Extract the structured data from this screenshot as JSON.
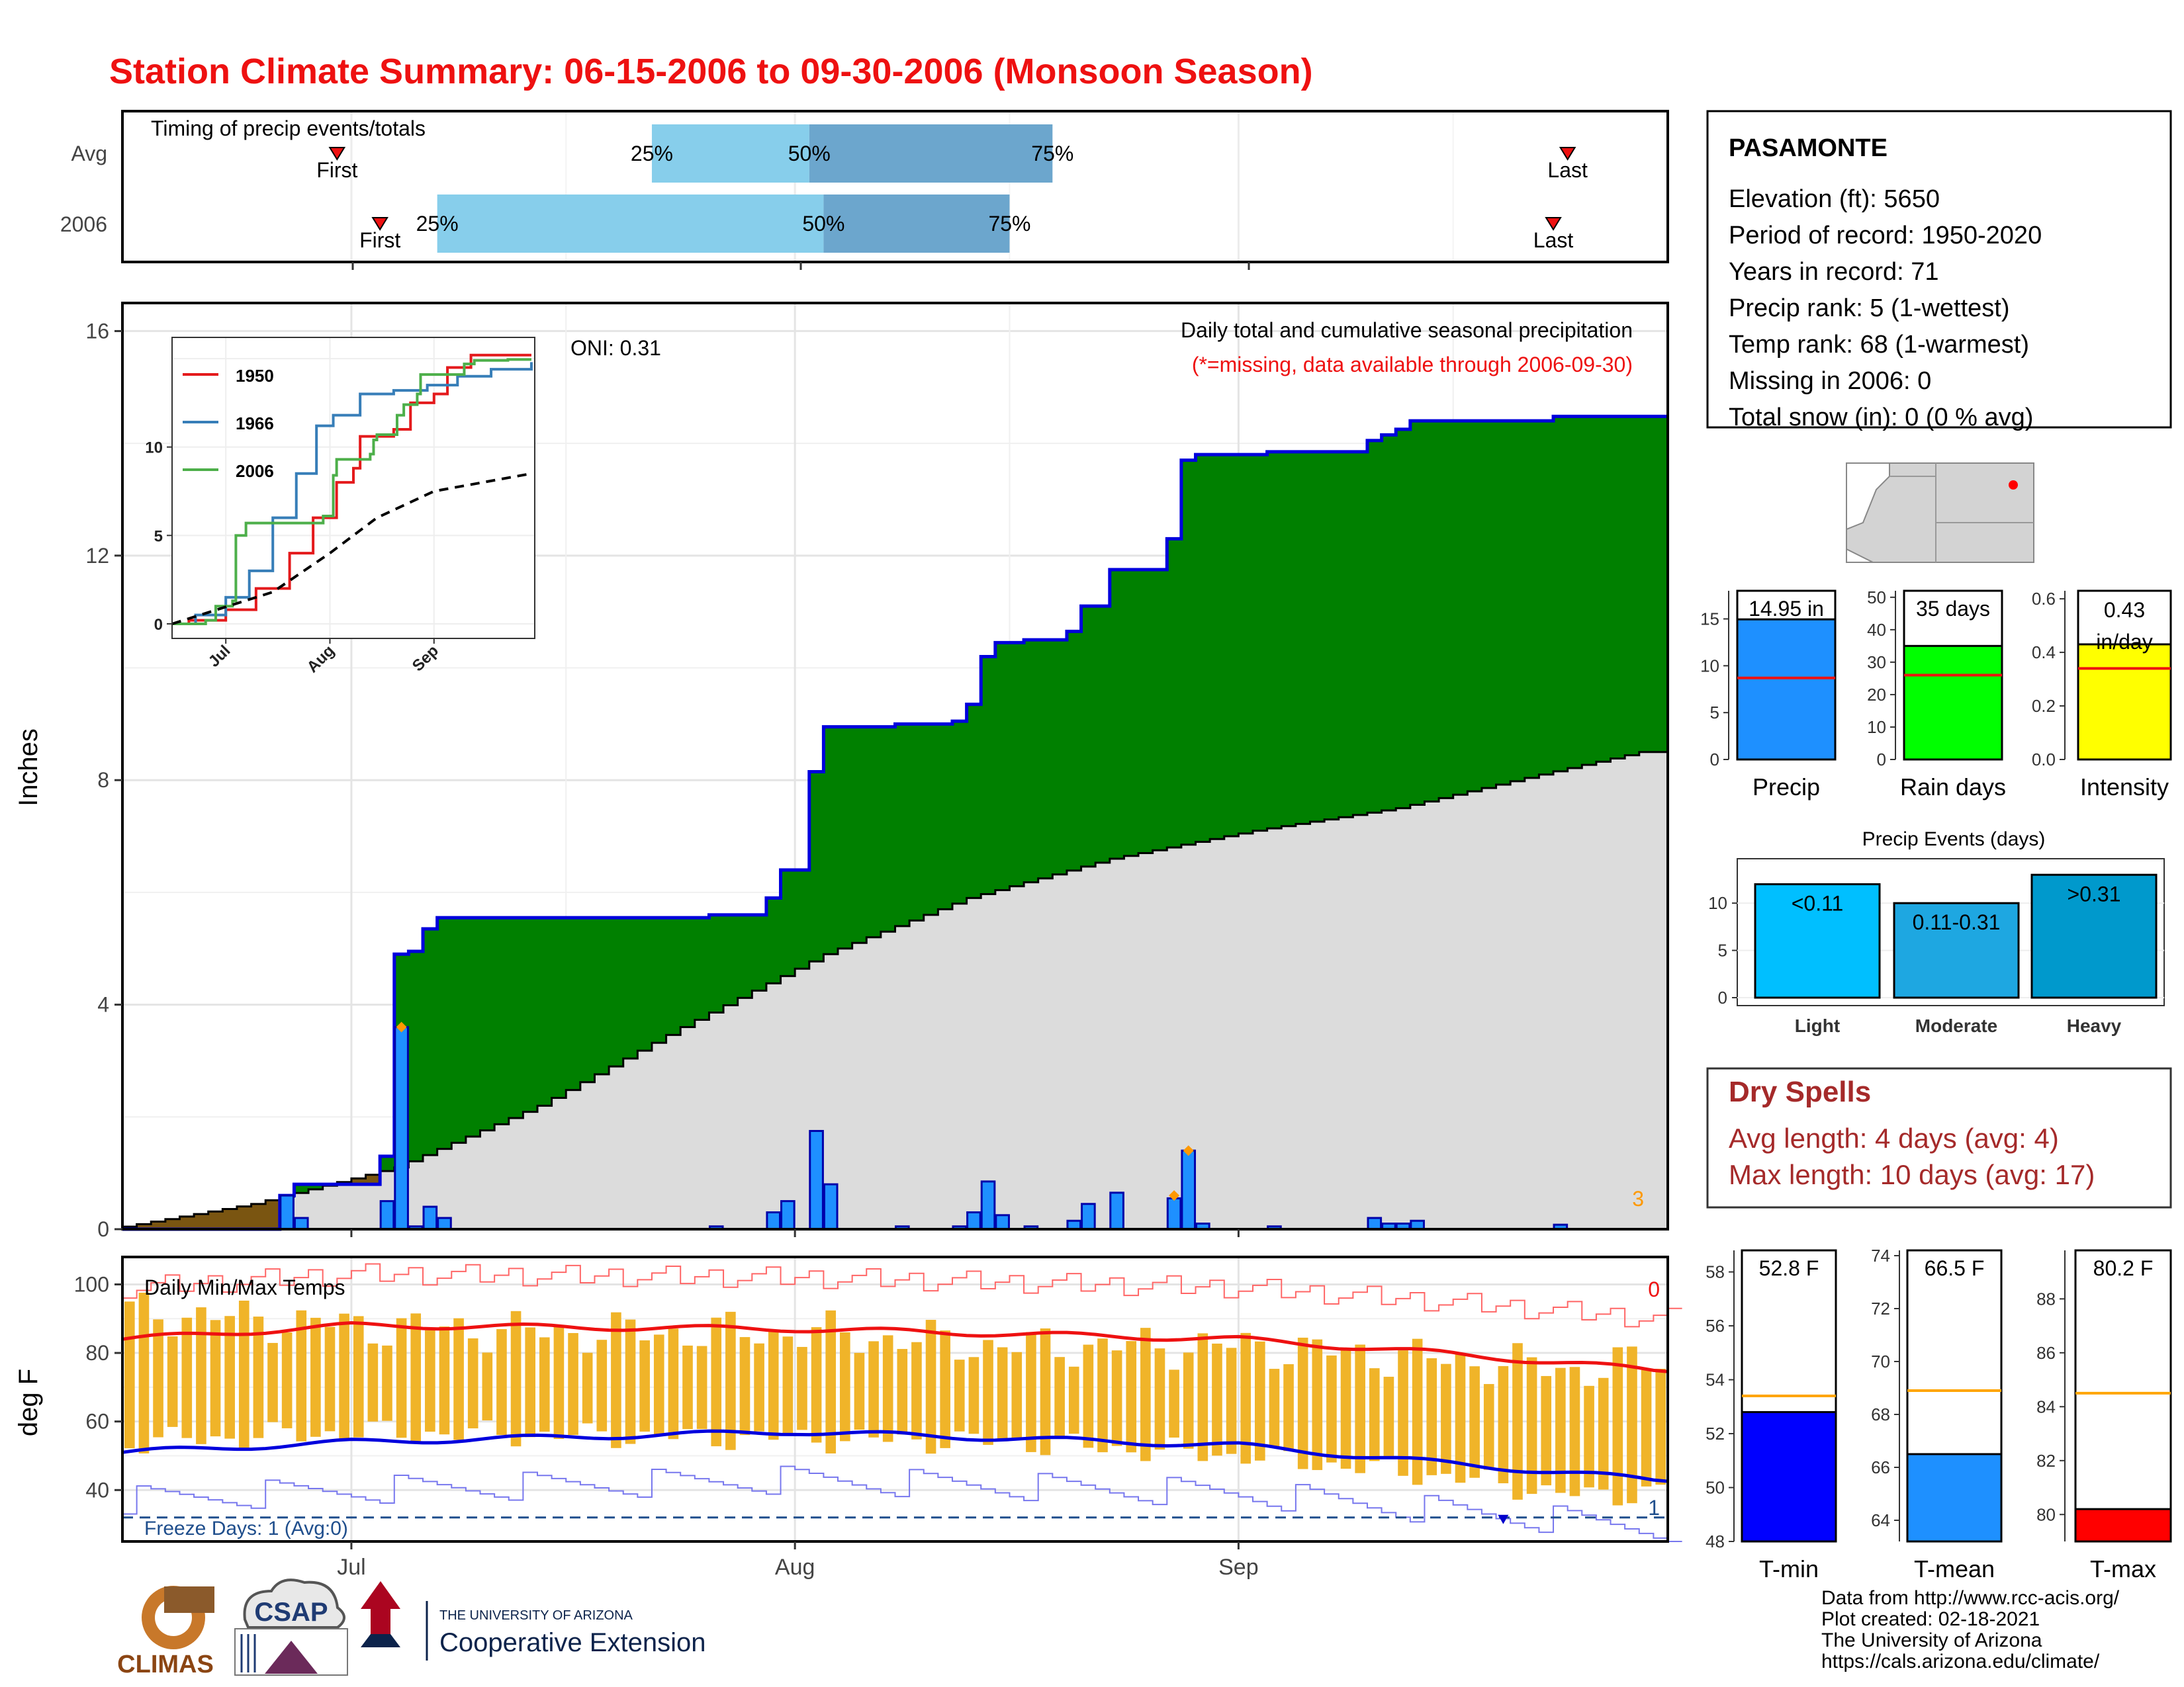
{
  "title": "Station Climate Summary: 06-15-2006 to 09-30-2006 (Monsoon Season)",
  "colors": {
    "title": "#ee1111",
    "cum_2006_fill": "#008000",
    "cum_2006_line": "#0000dd",
    "avg_fill": "#dcdcdc",
    "deficit_fill": "#7a5511",
    "daily_bar": "#1e90ff",
    "max_line": "#ee1111",
    "min_line": "#0000dd",
    "temp_bar": "#f0b429",
    "light_blue": "#87ceeb",
    "mid_blue": "#6ca6cd",
    "dry_spells": "#a52a2a"
  },
  "timing": {
    "label": "Timing of precip events/totals",
    "rows": [
      {
        "name": "Avg",
        "first_label": "First",
        "last_label": "Last",
        "p25_label": "25%",
        "p50_label": "50%",
        "p75_label": "75%",
        "first": "2006-06-30",
        "p25": "2006-07-22",
        "p50": "2006-08-02",
        "p75": "2006-08-19",
        "last": "2006-09-24"
      },
      {
        "name": "2006",
        "first_label": "First",
        "last_label": "Last",
        "p25_label": "25%",
        "p50_label": "50%",
        "p75_label": "75%",
        "first": "2006-07-03",
        "p25": "2006-07-07",
        "p50": "2006-08-03",
        "p75": "2006-08-16",
        "last": "2006-09-23"
      }
    ]
  },
  "station": {
    "name": "PASAMONTE",
    "lines": [
      "Elevation (ft): 5650",
      "Period of record: 1950-2020",
      "Years in record: 71",
      "Precip rank: 5 (1-wettest)",
      "Temp rank: 68 (1-warmest)",
      "Missing in 2006: 0",
      "Total snow (in): 0 (0 % avg)"
    ]
  },
  "main_plot": {
    "ylabel": "Inches",
    "oni_label": "ONI: 0.31",
    "legend_line1": "Daily total and cumulative seasonal precipitation",
    "legend_line2": "(*=missing, data available through 2006-09-30)",
    "corner_count": "3",
    "x_ticks": [
      "Jul",
      "Aug",
      "Sep"
    ],
    "y_ticks": [
      "0",
      "4",
      "8",
      "12",
      "16"
    ]
  },
  "inset": {
    "series_labels": [
      "1950",
      "1966",
      "2006"
    ],
    "y_ticks": [
      "0",
      "5",
      "10"
    ],
    "x_ticks": [
      "Jul",
      "Aug",
      "Sep"
    ]
  },
  "temp_plot": {
    "ylabel": "deg F",
    "label": "Daily Min/Max Temps",
    "freeze_label": "Freeze Days: 1 (Avg:0)",
    "hot_count": "0",
    "freeze_count": "1",
    "y_ticks": [
      "40",
      "60",
      "80",
      "100"
    ],
    "x_ticks": [
      "Jul",
      "Aug",
      "Sep"
    ]
  },
  "stat_bars": [
    {
      "name": "Precip",
      "value_label": "14.95 in",
      "value": 14.95,
      "avg": 8.7,
      "ylim": [
        0,
        18
      ],
      "ticks": [
        "0",
        "5",
        "10",
        "15"
      ],
      "color": "#1e90ff"
    },
    {
      "name": "Rain days",
      "value_label": "35 days",
      "value": 35,
      "avg": 26,
      "ylim": [
        0,
        52
      ],
      "ticks": [
        "0",
        "10",
        "20",
        "30",
        "40",
        "50"
      ],
      "color": "#00ff00"
    },
    {
      "name": "Intensity",
      "value_label": "0.43 in/day",
      "value": 0.43,
      "avg": 0.34,
      "ylim": [
        0,
        0.63
      ],
      "ticks": [
        "0.0",
        "0.2",
        "0.4",
        "0.6"
      ],
      "color": "#ffff00"
    }
  ],
  "precip_events": {
    "title": "Precip Events (days)",
    "categories": [
      "Light",
      "Moderate",
      "Heavy"
    ],
    "value_labels": [
      "<0.11",
      "0.11-0.31",
      ">0.31"
    ],
    "values": [
      12,
      10,
      13
    ],
    "ticks": [
      "0",
      "5",
      "10"
    ],
    "colors": [
      "#00bfff",
      "#1ea7e1",
      "#0099cc"
    ]
  },
  "dry_spells": {
    "title": "Dry Spells",
    "avg_line": "Avg length: 4 days (avg: 4)",
    "max_line": "Max length: 10 days (avg: 17)"
  },
  "temp_bars": [
    {
      "name": "T-min",
      "value_label": "52.8 F",
      "value": 52.8,
      "avg": 53.4,
      "ylim": [
        48,
        58.8
      ],
      "ticks": [
        "48",
        "50",
        "52",
        "54",
        "56",
        "58"
      ],
      "color": "#0000ff"
    },
    {
      "name": "T-mean",
      "value_label": "66.5 F",
      "value": 66.5,
      "avg": 68.9,
      "ylim": [
        63.2,
        74.2
      ],
      "ticks": [
        "64",
        "66",
        "68",
        "70",
        "72",
        "74"
      ],
      "color": "#1e90ff"
    },
    {
      "name": "T-max",
      "value_label": "80.2 F",
      "value": 80.2,
      "avg": 84.5,
      "ylim": [
        79,
        89.8
      ],
      "ticks": [
        "80",
        "82",
        "84",
        "86",
        "88"
      ],
      "color": "#ff0000"
    }
  ],
  "footer": {
    "lines": [
      "Data from http://www.rcc-acis.org/",
      "Plot created: 02-18-2021",
      "The University of Arizona",
      "https://cals.arizona.edu/climate/"
    ],
    "logo_climas": "CLIMAS",
    "logo_csap": "CSAP",
    "logo_ua_top": "THE UNIVERSITY OF ARIZONA",
    "logo_ua_bottom": "Cooperative Extension"
  },
  "chart_data": [
    {
      "type": "bar",
      "title": "Timing of precip events/totals",
      "categories": [
        "Avg",
        "2006"
      ],
      "x_range": [
        "2006-06-15",
        "2006-09-30"
      ],
      "series": [
        {
          "name": "Avg",
          "values": {
            "first": "2006-06-30",
            "p25": "2006-07-22",
            "p50": "2006-08-02",
            "p75": "2006-08-19",
            "last": "2006-09-24"
          }
        },
        {
          "name": "2006",
          "values": {
            "first": "2006-07-03",
            "p25": "2006-07-07",
            "p50": "2006-08-03",
            "p75": "2006-08-16",
            "last": "2006-09-23"
          }
        }
      ]
    },
    {
      "type": "area",
      "title": "Daily total and cumulative seasonal precipitation",
      "xlabel": "",
      "ylabel": "Inches",
      "x_range": [
        "2006-06-15",
        "2006-09-30"
      ],
      "ylim": [
        0,
        16.5
      ],
      "grid": true,
      "daily_precip_2006": [
        {
          "date": "2006-06-26",
          "value": 0.6
        },
        {
          "date": "2006-06-27",
          "value": 0.2
        },
        {
          "date": "2006-07-03",
          "value": 0.5
        },
        {
          "date": "2006-07-04",
          "value": 3.6
        },
        {
          "date": "2006-07-05",
          "value": 0.05
        },
        {
          "date": "2006-07-06",
          "value": 0.4
        },
        {
          "date": "2006-07-07",
          "value": 0.2
        },
        {
          "date": "2006-07-26",
          "value": 0.05
        },
        {
          "date": "2006-07-30",
          "value": 0.3
        },
        {
          "date": "2006-07-31",
          "value": 0.5
        },
        {
          "date": "2006-08-02",
          "value": 1.75
        },
        {
          "date": "2006-08-03",
          "value": 0.8
        },
        {
          "date": "2006-08-08",
          "value": 0.05
        },
        {
          "date": "2006-08-12",
          "value": 0.05
        },
        {
          "date": "2006-08-13",
          "value": 0.3
        },
        {
          "date": "2006-08-14",
          "value": 0.85
        },
        {
          "date": "2006-08-15",
          "value": 0.25
        },
        {
          "date": "2006-08-17",
          "value": 0.05
        },
        {
          "date": "2006-08-20",
          "value": 0.15
        },
        {
          "date": "2006-08-21",
          "value": 0.45
        },
        {
          "date": "2006-08-23",
          "value": 0.65
        },
        {
          "date": "2006-08-27",
          "value": 0.55
        },
        {
          "date": "2006-08-28",
          "value": 1.4
        },
        {
          "date": "2006-08-29",
          "value": 0.1
        },
        {
          "date": "2006-09-03",
          "value": 0.05
        },
        {
          "date": "2006-09-10",
          "value": 0.2
        },
        {
          "date": "2006-09-11",
          "value": 0.1
        },
        {
          "date": "2006-09-12",
          "value": 0.1
        },
        {
          "date": "2006-09-13",
          "value": 0.15
        },
        {
          "date": "2006-09-23",
          "value": 0.08
        }
      ],
      "avg_cumulative": [
        {
          "date": "2006-06-15",
          "value": 0.0
        },
        {
          "date": "2006-06-25",
          "value": 0.45
        },
        {
          "date": "2006-07-05",
          "value": 1.1
        },
        {
          "date": "2006-07-15",
          "value": 2.2
        },
        {
          "date": "2006-07-25",
          "value": 3.6
        },
        {
          "date": "2006-08-04",
          "value": 4.9
        },
        {
          "date": "2006-08-14",
          "value": 5.9
        },
        {
          "date": "2006-08-24",
          "value": 6.6
        },
        {
          "date": "2006-09-03",
          "value": 7.1
        },
        {
          "date": "2006-09-13",
          "value": 7.5
        },
        {
          "date": "2006-09-23",
          "value": 8.1
        },
        {
          "date": "2006-09-30",
          "value": 8.5
        }
      ],
      "markers": [
        {
          "date": "2006-07-04",
          "value": 3.6
        },
        {
          "date": "2006-08-27",
          "value": 0.6
        },
        {
          "date": "2006-08-28",
          "value": 1.4
        }
      ]
    },
    {
      "type": "line",
      "title": "",
      "x_range": [
        "2006-06-15",
        "2006-09-30"
      ],
      "ylim": [
        0,
        16
      ],
      "series": [
        {
          "name": "1950",
          "values": [
            {
              "date": "2006-06-15",
              "value": 0
            },
            {
              "date": "2006-06-20",
              "value": 0.2
            },
            {
              "date": "2006-07-01",
              "value": 0.8
            },
            {
              "date": "2006-07-10",
              "value": 2.0
            },
            {
              "date": "2006-07-20",
              "value": 4.0
            },
            {
              "date": "2006-07-27",
              "value": 6.0
            },
            {
              "date": "2006-08-03",
              "value": 8.0
            },
            {
              "date": "2006-08-08",
              "value": 8.8
            },
            {
              "date": "2006-08-10",
              "value": 10.6
            },
            {
              "date": "2006-08-20",
              "value": 11.0
            },
            {
              "date": "2006-08-25",
              "value": 12.5
            },
            {
              "date": "2006-09-01",
              "value": 13.0
            },
            {
              "date": "2006-09-05",
              "value": 14.5
            },
            {
              "date": "2006-09-12",
              "value": 15.2
            },
            {
              "date": "2006-09-30",
              "value": 15.2
            }
          ]
        },
        {
          "name": "1966",
          "values": [
            {
              "date": "2006-06-15",
              "value": 0
            },
            {
              "date": "2006-06-22",
              "value": 0.5
            },
            {
              "date": "2006-07-01",
              "value": 1.5
            },
            {
              "date": "2006-07-08",
              "value": 3.0
            },
            {
              "date": "2006-07-15",
              "value": 6.0
            },
            {
              "date": "2006-07-22",
              "value": 8.5
            },
            {
              "date": "2006-07-28",
              "value": 11.2
            },
            {
              "date": "2006-08-02",
              "value": 11.8
            },
            {
              "date": "2006-08-10",
              "value": 13.0
            },
            {
              "date": "2006-08-20",
              "value": 13.2
            },
            {
              "date": "2006-08-30",
              "value": 13.5
            },
            {
              "date": "2006-09-08",
              "value": 14.0
            },
            {
              "date": "2006-09-18",
              "value": 14.4
            },
            {
              "date": "2006-09-30",
              "value": 14.8
            }
          ]
        },
        {
          "name": "2006",
          "values": [
            {
              "date": "2006-06-15",
              "value": 0
            },
            {
              "date": "2006-06-25",
              "value": 0.2
            },
            {
              "date": "2006-06-28",
              "value": 1.0
            },
            {
              "date": "2006-07-03",
              "value": 1.3
            },
            {
              "date": "2006-07-04",
              "value": 5.0
            },
            {
              "date": "2006-07-07",
              "value": 5.7
            },
            {
              "date": "2006-07-30",
              "value": 6.1
            },
            {
              "date": "2006-08-02",
              "value": 8.4
            },
            {
              "date": "2006-08-03",
              "value": 9.3
            },
            {
              "date": "2006-08-13",
              "value": 9.6
            },
            {
              "date": "2006-08-14",
              "value": 10.4
            },
            {
              "date": "2006-08-15",
              "value": 10.7
            },
            {
              "date": "2006-08-21",
              "value": 11.8
            },
            {
              "date": "2006-08-23",
              "value": 12.4
            },
            {
              "date": "2006-08-27",
              "value": 13.0
            },
            {
              "date": "2006-08-28",
              "value": 14.1
            },
            {
              "date": "2006-09-10",
              "value": 14.7
            },
            {
              "date": "2006-09-13",
              "value": 14.9
            },
            {
              "date": "2006-09-23",
              "value": 14.95
            },
            {
              "date": "2006-09-30",
              "value": 14.95
            }
          ]
        },
        {
          "name": "",
          "values": [
            {
              "date": "2006-06-15",
              "value": 0
            },
            {
              "date": "2006-07-15",
              "value": 1.8
            },
            {
              "date": "2006-08-01",
              "value": 4.0
            },
            {
              "date": "2006-08-15",
              "value": 6.0
            },
            {
              "date": "2006-09-01",
              "value": 7.5
            },
            {
              "date": "2006-09-30",
              "value": 8.5
            }
          ]
        }
      ]
    },
    {
      "type": "bar",
      "title": "Daily Min/Max Temps",
      "ylabel": "deg F",
      "ylim": [
        25,
        108
      ],
      "x_range": [
        "2006-06-15",
        "2006-09-30"
      ],
      "series": [
        {
          "name": "",
          "values": [
            {
              "date": "2006-06-15",
              "min": 54,
              "max": 92
            },
            {
              "date": "2006-07-01",
              "min": 57,
              "max": 88
            },
            {
              "date": "2006-07-15",
              "min": 56,
              "max": 86
            },
            {
              "date": "2006-08-01",
              "min": 55,
              "max": 86
            },
            {
              "date": "2006-08-15",
              "min": 54,
              "max": 82
            },
            {
              "date": "2006-09-01",
              "min": 50,
              "max": 82
            },
            {
              "date": "2006-09-15",
              "min": 44,
              "max": 78
            },
            {
              "date": "2006-09-25",
              "min": 38,
              "max": 75
            },
            {
              "date": "2006-09-30",
              "min": 40,
              "max": 78
            }
          ]
        },
        {
          "name": "",
          "values": [
            {
              "date": "2006-06-15",
              "value": 84
            },
            {
              "date": "2006-07-01",
              "value": 88
            },
            {
              "date": "2006-08-01",
              "value": 87
            },
            {
              "date": "2006-09-01",
              "value": 84
            },
            {
              "date": "2006-09-15",
              "value": 80
            },
            {
              "date": "2006-09-30",
              "value": 75
            }
          ]
        },
        {
          "name": "",
          "values": [
            {
              "date": "2006-06-15",
              "value": 51
            },
            {
              "date": "2006-07-01",
              "value": 54
            },
            {
              "date": "2006-08-01",
              "value": 57
            },
            {
              "date": "2006-09-01",
              "value": 53
            },
            {
              "date": "2006-09-15",
              "value": 48
            },
            {
              "date": "2006-09-30",
              "value": 43
            }
          ]
        }
      ],
      "freeze_threshold": 32
    },
    {
      "type": "bar",
      "categories": [
        "Precip"
      ],
      "values": [
        14.95
      ],
      "avg": 8.7,
      "ylim": [
        0,
        18
      ]
    },
    {
      "type": "bar",
      "categories": [
        "Rain days"
      ],
      "values": [
        35
      ],
      "avg": 26,
      "ylim": [
        0,
        52
      ]
    },
    {
      "type": "bar",
      "categories": [
        "Intensity"
      ],
      "values": [
        0.43
      ],
      "avg": 0.34,
      "ylim": [
        0,
        0.63
      ]
    },
    {
      "type": "bar",
      "title": "Precip Events (days)",
      "categories": [
        "Light",
        "Moderate",
        "Heavy"
      ],
      "values": [
        12,
        10,
        13
      ],
      "ylim": [
        0,
        15
      ]
    },
    {
      "type": "bar",
      "categories": [
        "T-min"
      ],
      "values": [
        52.8
      ],
      "avg": 53.4,
      "ylim": [
        48,
        58.8
      ]
    },
    {
      "type": "bar",
      "categories": [
        "T-mean"
      ],
      "values": [
        66.5
      ],
      "avg": 68.9,
      "ylim": [
        63.2,
        74.2
      ]
    },
    {
      "type": "bar",
      "categories": [
        "T-max"
      ],
      "values": [
        80.2
      ],
      "avg": 84.5,
      "ylim": [
        79,
        89.8
      ]
    }
  ]
}
